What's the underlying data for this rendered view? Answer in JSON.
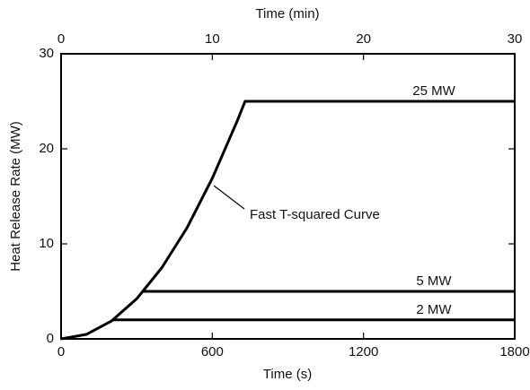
{
  "chart_data": {
    "type": "line",
    "xlabel": "Time (s)",
    "x2label": "Time (min)",
    "ylabel": "Heat Release Rate (MW)",
    "xlim": [
      0,
      1800
    ],
    "xticks": [
      0,
      600,
      1200,
      1800
    ],
    "x2lim": [
      0,
      30
    ],
    "x2ticks": [
      0,
      10,
      20,
      30
    ],
    "ylim": [
      0,
      30
    ],
    "yticks": [
      0,
      10,
      20,
      30
    ],
    "grid": false,
    "series": [
      {
        "name": "25 MW",
        "color": "#000000",
        "x": [
          0,
          100,
          200,
          300,
          400,
          500,
          600,
          700,
          730,
          1800
        ],
        "values": [
          0,
          0.47,
          1.88,
          4.22,
          7.5,
          11.7,
          16.9,
          23.0,
          25,
          25
        ]
      },
      {
        "name": "5 MW",
        "color": "#000000",
        "x": [
          326,
          1800
        ],
        "values": [
          5,
          5
        ]
      },
      {
        "name": "2 MW",
        "color": "#000000",
        "x": [
          206,
          1800
        ],
        "values": [
          2,
          2
        ]
      }
    ],
    "annotation": "Fast T-squared Curve"
  }
}
